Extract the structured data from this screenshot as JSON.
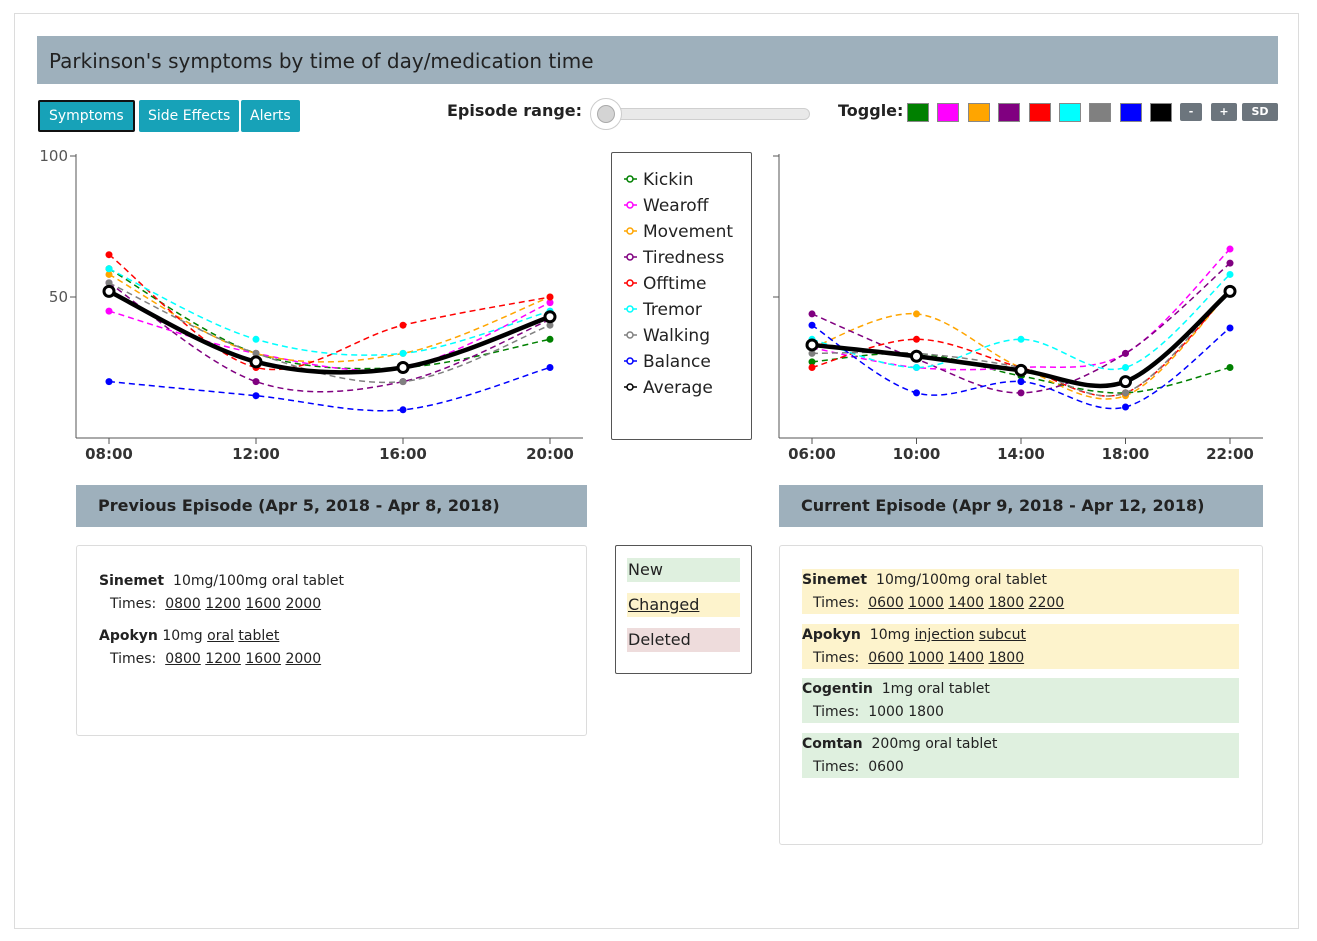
{
  "title": "Parkinson's symptoms by time of day/medication time",
  "tabs": [
    {
      "label": "Symptoms",
      "active": true
    },
    {
      "label": "Side Effects",
      "active": false
    },
    {
      "label": "Alerts",
      "active": false
    }
  ],
  "episode_range_label": "Episode range:",
  "episode_range_value": 0,
  "toggle_label": "Toggle:",
  "toggle_colors": [
    "#008000",
    "#ff00ff",
    "#ffa500",
    "#800080",
    "#ff0000",
    "#00ffff",
    "#808080",
    "#0000ff",
    "#000000"
  ],
  "toggle_buttons": [
    "-",
    "+",
    "SD"
  ],
  "chart_data": [
    {
      "type": "line",
      "x": [
        "08:00",
        "12:00",
        "16:00",
        "20:00"
      ],
      "ylim": [
        0,
        100
      ],
      "yticks": [
        "100",
        "50"
      ],
      "series": [
        {
          "name": "Kickin",
          "color": "#008000",
          "values": [
            60,
            30,
            25,
            35
          ]
        },
        {
          "name": "Wearoff",
          "color": "#ff00ff",
          "values": [
            45,
            30,
            25,
            48
          ]
        },
        {
          "name": "Movement",
          "color": "#ffa500",
          "values": [
            58,
            30,
            30,
            50
          ]
        },
        {
          "name": "Tiredness",
          "color": "#800080",
          "values": [
            55,
            20,
            20,
            42
          ]
        },
        {
          "name": "Offtime",
          "color": "#ff0000",
          "values": [
            65,
            25,
            40,
            50
          ]
        },
        {
          "name": "Tremor",
          "color": "#00ffff",
          "values": [
            60,
            35,
            30,
            45
          ]
        },
        {
          "name": "Walking",
          "color": "#808080",
          "values": [
            55,
            30,
            20,
            40
          ]
        },
        {
          "name": "Balance",
          "color": "#0000ff",
          "values": [
            20,
            15,
            10,
            25
          ]
        },
        {
          "name": "Average",
          "color": "#000000",
          "values": [
            52,
            27,
            25,
            43
          ],
          "bold": true
        }
      ]
    },
    {
      "type": "line",
      "x": [
        "06:00",
        "10:00",
        "14:00",
        "18:00",
        "22:00"
      ],
      "ylim": [
        0,
        100
      ],
      "series": [
        {
          "name": "Kickin",
          "color": "#008000",
          "values": [
            27,
            30,
            22,
            16,
            25
          ]
        },
        {
          "name": "Wearoff",
          "color": "#ff00ff",
          "values": [
            32,
            25,
            25,
            30,
            67
          ]
        },
        {
          "name": "Movement",
          "color": "#ffa500",
          "values": [
            32,
            44,
            25,
            15,
            52
          ]
        },
        {
          "name": "Tiredness",
          "color": "#800080",
          "values": [
            44,
            28,
            16,
            30,
            62
          ]
        },
        {
          "name": "Offtime",
          "color": "#ff0000",
          "values": [
            25,
            35,
            25,
            16,
            52
          ]
        },
        {
          "name": "Tremor",
          "color": "#00ffff",
          "values": [
            35,
            25,
            35,
            25,
            58
          ]
        },
        {
          "name": "Walking",
          "color": "#808080",
          "values": [
            30,
            30,
            25,
            16,
            53
          ]
        },
        {
          "name": "Balance",
          "color": "#0000ff",
          "values": [
            40,
            16,
            20,
            11,
            39
          ]
        },
        {
          "name": "Average",
          "color": "#000000",
          "values": [
            33,
            29,
            24,
            20,
            52
          ],
          "bold": true
        }
      ]
    }
  ],
  "legend": [
    "Kickin",
    "Wearoff",
    "Movement",
    "Tiredness",
    "Offtime",
    "Tremor",
    "Walking",
    "Balance",
    "Average"
  ],
  "previous_episode": {
    "header": "Previous Episode  (Apr 5, 2018 - Apr 8, 2018)",
    "meds": [
      {
        "name": "Sinemet",
        "dose": "10mg/100mg oral tablet",
        "times_label": "Times:",
        "times": [
          "0800",
          "1200",
          "1600",
          "2000"
        ]
      },
      {
        "name": "Apokyn",
        "dose_prefix": "10mg",
        "route": "oral",
        "form": "tablet",
        "times_label": "Times:",
        "times": [
          "0800",
          "1200",
          "1600",
          "2000"
        ]
      }
    ]
  },
  "current_episode": {
    "header": "Current Episode  (Apr 9, 2018 - Apr 12, 2018)",
    "meds": [
      {
        "name": "Sinemet",
        "dose": "10mg/100mg oral tablet",
        "times_label": "Times:",
        "times": [
          "0600",
          "1000",
          "1400",
          "1800",
          "2200"
        ],
        "status": "changed"
      },
      {
        "name": "Apokyn",
        "dose_prefix": "10mg",
        "route": "injection",
        "form": "subcut",
        "times_label": "Times:",
        "times": [
          "0600",
          "1000",
          "1400",
          "1800"
        ],
        "status": "changed"
      },
      {
        "name": "Cogentin",
        "dose": "1mg oral tablet",
        "times_label": "Times:",
        "times_text": "1000 1800",
        "status": "new"
      },
      {
        "name": "Comtan",
        "dose": "200mg oral tablet",
        "times_label": "Times:",
        "times_text": "0600",
        "status": "new"
      }
    ]
  },
  "key": {
    "new": "New",
    "changed": "Changed",
    "deleted": "Deleted",
    "colors": {
      "new": "#dff0df",
      "changed": "#fdf3cc",
      "deleted": "#eedcdc"
    }
  }
}
